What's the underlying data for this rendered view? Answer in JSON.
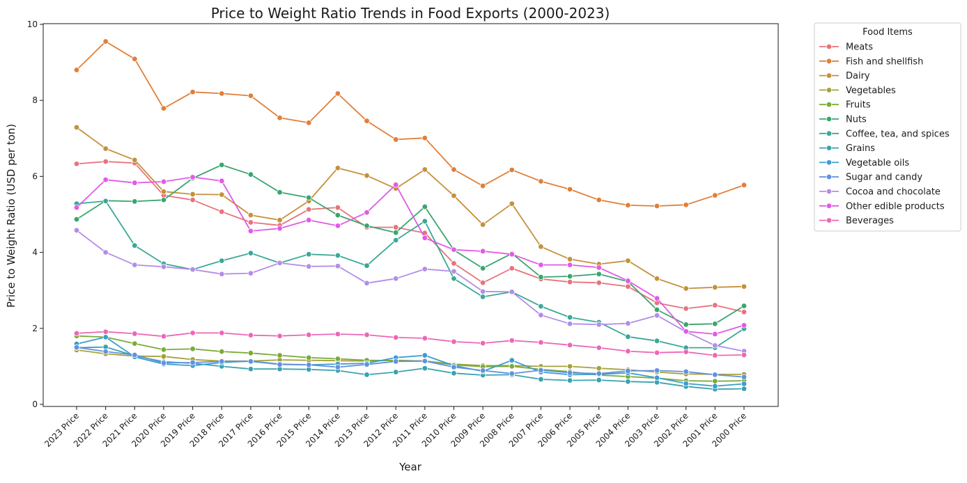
{
  "chart_data": {
    "type": "line",
    "title": "Price to Weight Ratio Trends in Food Exports (2000-2023)",
    "xlabel": "Year",
    "ylabel": "Price to Weight Ratio (USD per ton)",
    "ylim": [
      0,
      10
    ],
    "yticks": [
      0,
      2,
      4,
      6,
      8,
      10
    ],
    "grid": false,
    "legend_title": "Food Items",
    "legend_position": "outside-top-right",
    "categories": [
      "2023 Price",
      "2022 Price",
      "2021 Price",
      "2020 Price",
      "2019 Price",
      "2018 Price",
      "2017 Price",
      "2016 Price",
      "2015 Price",
      "2014 Price",
      "2013 Price",
      "2012 Price",
      "2011 Price",
      "2010 Price",
      "2009 Price",
      "2008 Price",
      "2007 Price",
      "2006 Price",
      "2005 Price",
      "2004 Price",
      "2003 Price",
      "2002 Price",
      "2001 Price",
      "2000 Price"
    ],
    "series": [
      {
        "name": "Meats",
        "color": "#e8737b",
        "values": [
          6.33,
          6.39,
          6.35,
          5.5,
          5.38,
          5.07,
          4.79,
          4.71,
          5.13,
          5.18,
          4.66,
          4.66,
          4.51,
          3.71,
          3.2,
          3.58,
          3.3,
          3.22,
          3.2,
          3.1,
          2.67,
          2.52,
          2.61,
          2.43
        ]
      },
      {
        "name": "Fish and shellfish",
        "color": "#e07f38",
        "values": [
          8.8,
          9.55,
          9.09,
          7.79,
          8.22,
          8.18,
          8.12,
          7.54,
          7.41,
          8.18,
          7.46,
          6.97,
          7.01,
          6.18,
          5.75,
          6.17,
          5.87,
          5.66,
          5.38,
          5.24,
          5.22,
          5.25,
          5.5,
          5.77
        ]
      },
      {
        "name": "Dairy",
        "color": "#c4913b",
        "values": [
          7.29,
          6.73,
          6.43,
          5.6,
          5.53,
          5.52,
          4.98,
          4.85,
          5.35,
          6.22,
          6.02,
          5.68,
          6.18,
          5.49,
          4.73,
          5.28,
          4.15,
          3.82,
          3.69,
          3.78,
          3.31,
          3.05,
          3.08,
          3.1
        ]
      },
      {
        "name": "Vegetables",
        "color": "#a5a13a",
        "values": [
          1.43,
          1.33,
          1.27,
          1.26,
          1.18,
          1.14,
          1.14,
          1.17,
          1.16,
          1.15,
          1.14,
          1.16,
          1.14,
          1.06,
          1.02,
          1.02,
          1.0,
          1.0,
          0.95,
          0.91,
          0.85,
          0.8,
          0.79,
          0.79
        ]
      },
      {
        "name": "Fruits",
        "color": "#7bab38",
        "values": [
          1.8,
          1.77,
          1.6,
          1.44,
          1.46,
          1.39,
          1.35,
          1.29,
          1.23,
          1.2,
          1.16,
          1.15,
          1.14,
          1.04,
          0.99,
          1.0,
          0.92,
          0.86,
          0.77,
          0.73,
          0.69,
          0.62,
          0.61,
          0.62
        ]
      },
      {
        "name": "Nuts",
        "color": "#3aa56e",
        "values": [
          4.87,
          5.36,
          5.34,
          5.38,
          5.95,
          6.3,
          6.05,
          5.58,
          5.44,
          4.98,
          4.7,
          4.52,
          5.2,
          4.06,
          3.58,
          3.97,
          3.35,
          3.37,
          3.43,
          3.23,
          2.49,
          2.1,
          2.12,
          2.59
        ]
      },
      {
        "name": "Coffee, tea, and spices",
        "color": "#3aa898",
        "values": [
          5.28,
          5.35,
          4.18,
          3.7,
          3.55,
          3.78,
          3.98,
          3.72,
          3.95,
          3.92,
          3.65,
          4.32,
          4.82,
          3.31,
          2.83,
          2.96,
          2.58,
          2.29,
          2.16,
          1.78,
          1.67,
          1.49,
          1.49,
          1.99
        ]
      },
      {
        "name": "Grains",
        "color": "#39a2b0",
        "values": [
          1.49,
          1.51,
          1.28,
          1.12,
          1.08,
          1.0,
          0.93,
          0.93,
          0.92,
          0.89,
          0.78,
          0.85,
          0.95,
          0.82,
          0.77,
          0.78,
          0.66,
          0.63,
          0.64,
          0.6,
          0.58,
          0.47,
          0.4,
          0.41
        ]
      },
      {
        "name": "Vegetable oils",
        "color": "#3b9dd1",
        "values": [
          1.59,
          1.77,
          1.25,
          1.06,
          1.02,
          1.1,
          1.14,
          1.06,
          1.04,
          1.06,
          1.08,
          1.23,
          1.29,
          1.02,
          0.87,
          1.16,
          0.85,
          0.78,
          0.79,
          0.83,
          0.7,
          0.55,
          0.48,
          0.54
        ]
      },
      {
        "name": "Sugar and candy",
        "color": "#6491de",
        "values": [
          1.5,
          1.39,
          1.3,
          1.09,
          1.1,
          1.13,
          1.13,
          1.05,
          1.04,
          0.98,
          1.05,
          1.13,
          1.14,
          0.98,
          0.89,
          0.81,
          0.9,
          0.83,
          0.81,
          0.88,
          0.89,
          0.86,
          0.78,
          0.72
        ]
      },
      {
        "name": "Cocoa and chocolate",
        "color": "#b38de8",
        "values": [
          4.58,
          4.0,
          3.67,
          3.62,
          3.55,
          3.43,
          3.45,
          3.72,
          3.63,
          3.64,
          3.19,
          3.31,
          3.56,
          3.5,
          2.97,
          2.96,
          2.35,
          2.12,
          2.1,
          2.13,
          2.34,
          1.91,
          1.55,
          1.4
        ]
      },
      {
        "name": "Other edible products",
        "color": "#e15ae6",
        "values": [
          5.18,
          5.91,
          5.83,
          5.86,
          5.98,
          5.88,
          4.56,
          4.63,
          4.85,
          4.7,
          5.05,
          5.78,
          4.38,
          4.07,
          4.03,
          3.95,
          3.67,
          3.67,
          3.6,
          3.25,
          2.79,
          1.92,
          1.85,
          2.08
        ]
      },
      {
        "name": "Beverages",
        "color": "#ec67b6",
        "values": [
          1.87,
          1.91,
          1.86,
          1.79,
          1.88,
          1.88,
          1.82,
          1.8,
          1.83,
          1.85,
          1.83,
          1.76,
          1.74,
          1.65,
          1.61,
          1.68,
          1.63,
          1.56,
          1.49,
          1.4,
          1.36,
          1.38,
          1.29,
          1.3
        ]
      }
    ]
  }
}
